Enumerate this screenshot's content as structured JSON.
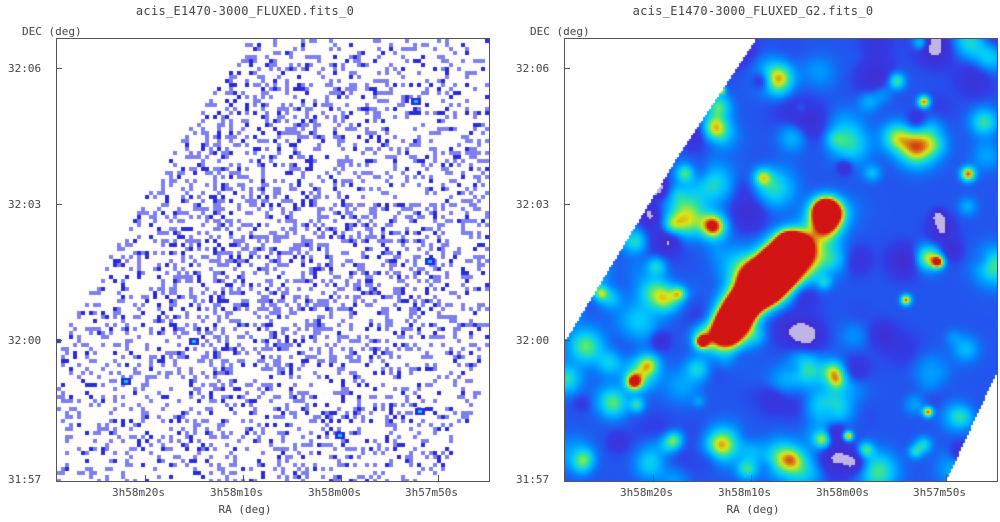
{
  "panels": [
    {
      "title": "acis_E1470-3000_FLUXED.fits_0",
      "ylabel": "DEC (deg)",
      "xlabel": "RA (deg)",
      "yticks": [
        "32:06",
        "32:03",
        "32:00",
        "31:57"
      ],
      "xticks": [
        "3h58m20s",
        "3h58m10s",
        "3h58m00s",
        "3h57m50s"
      ],
      "image_kind": "raw-counts"
    },
    {
      "title": "acis_E1470-3000_FLUXED_G2.fits_0",
      "ylabel": "DEC (deg)",
      "xlabel": "RA (deg)",
      "yticks": [
        "32:06",
        "32:03",
        "32:00",
        "31:57"
      ],
      "xticks": [
        "3h58m20s",
        "3h58m10s",
        "3h58m00s",
        "3h57m50s"
      ],
      "image_kind": "gaussian-smoothed"
    }
  ],
  "colors": {
    "pixel_low": "#7f7ff0",
    "pixel_mid": "#2b2bd8",
    "smooth_low": "#3030c8",
    "smooth_mid": "#00c8ff",
    "smooth_high": "#30e030",
    "source_core": "#d01010",
    "source_ring": "#f0e000"
  }
}
